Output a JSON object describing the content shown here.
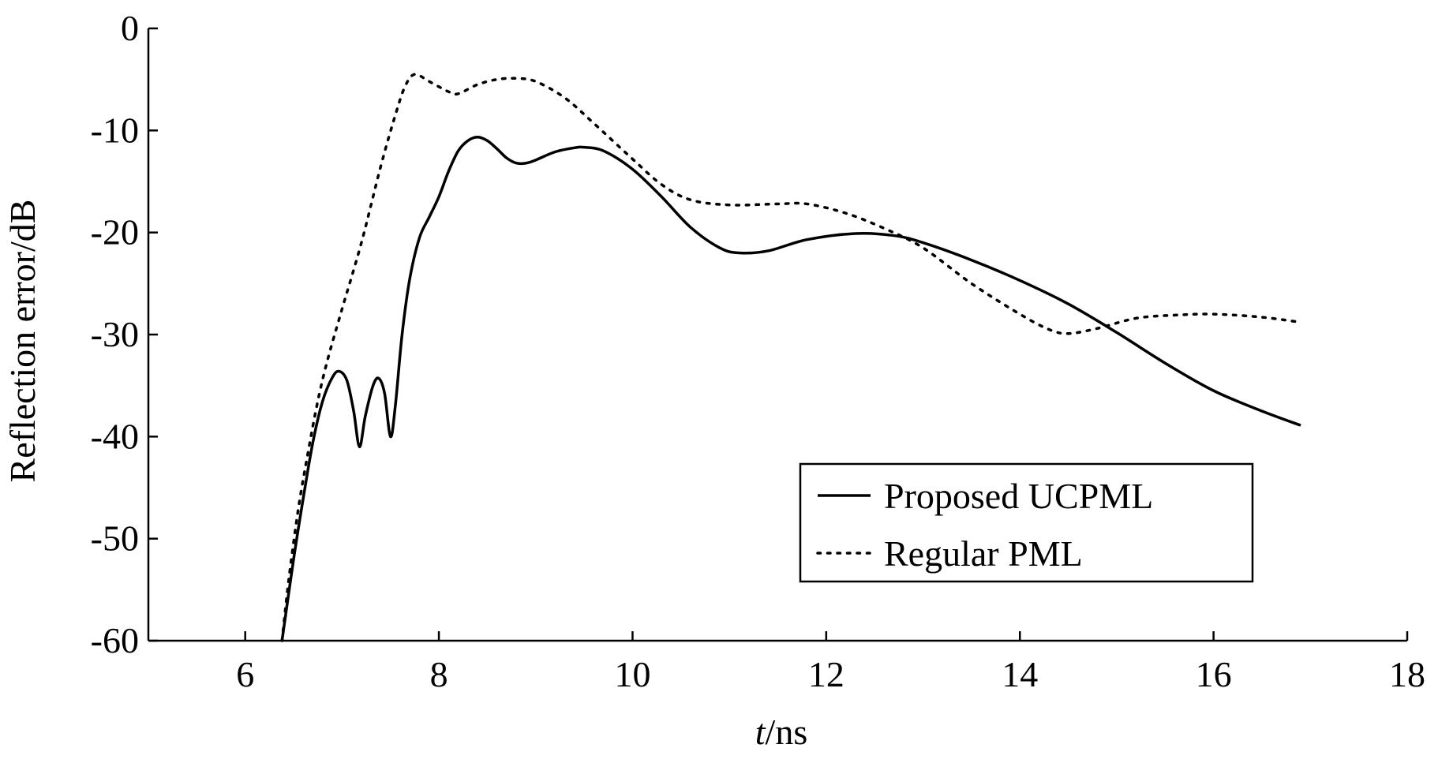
{
  "chart_data": {
    "type": "line",
    "title": "",
    "xlabel_italic": "t",
    "xlabel_rest": "/ns",
    "ylabel": "Reflection error/dB",
    "xlim": [
      5,
      18
    ],
    "ylim": [
      -60,
      0
    ],
    "x_ticks": [
      6,
      8,
      10,
      12,
      14,
      16,
      18
    ],
    "y_ticks": [
      0,
      -10,
      -20,
      -30,
      -40,
      -50,
      -60
    ],
    "grid": false,
    "legend_position": "bottom-right",
    "series": [
      {
        "name": "Proposed UCPML",
        "style": "solid",
        "color": "#000000",
        "points": [
          [
            6.38,
            -60
          ],
          [
            6.5,
            -52
          ],
          [
            6.6,
            -46
          ],
          [
            6.7,
            -40.5
          ],
          [
            6.8,
            -36.5
          ],
          [
            6.9,
            -34.2
          ],
          [
            6.97,
            -33.6
          ],
          [
            7.05,
            -34.5
          ],
          [
            7.12,
            -37.5
          ],
          [
            7.18,
            -41
          ],
          [
            7.24,
            -38
          ],
          [
            7.32,
            -35
          ],
          [
            7.38,
            -34.3
          ],
          [
            7.44,
            -35.8
          ],
          [
            7.5,
            -40
          ],
          [
            7.55,
            -37
          ],
          [
            7.62,
            -30
          ],
          [
            7.7,
            -24.5
          ],
          [
            7.8,
            -20.5
          ],
          [
            7.9,
            -18.5
          ],
          [
            8.0,
            -16.5
          ],
          [
            8.1,
            -14
          ],
          [
            8.2,
            -12
          ],
          [
            8.3,
            -11
          ],
          [
            8.4,
            -10.65
          ],
          [
            8.5,
            -11
          ],
          [
            8.6,
            -11.8
          ],
          [
            8.7,
            -12.7
          ],
          [
            8.8,
            -13.2
          ],
          [
            8.9,
            -13.2
          ],
          [
            9.0,
            -12.9
          ],
          [
            9.2,
            -12.1
          ],
          [
            9.4,
            -11.7
          ],
          [
            9.5,
            -11.65
          ],
          [
            9.7,
            -12
          ],
          [
            10.0,
            -13.8
          ],
          [
            10.3,
            -16.5
          ],
          [
            10.6,
            -19.5
          ],
          [
            10.9,
            -21.5
          ],
          [
            11.1,
            -22
          ],
          [
            11.4,
            -21.8
          ],
          [
            11.8,
            -20.7
          ],
          [
            12.3,
            -20.1
          ],
          [
            12.7,
            -20.3
          ],
          [
            13.0,
            -21
          ],
          [
            13.5,
            -22.7
          ],
          [
            14.0,
            -24.7
          ],
          [
            14.5,
            -27
          ],
          [
            15.0,
            -29.8
          ],
          [
            15.5,
            -32.8
          ],
          [
            16.0,
            -35.5
          ],
          [
            16.5,
            -37.5
          ],
          [
            16.9,
            -38.9
          ]
        ]
      },
      {
        "name": "Regular PML",
        "style": "dotted",
        "color": "#000000",
        "points": [
          [
            6.38,
            -60
          ],
          [
            6.45,
            -54
          ],
          [
            6.55,
            -47
          ],
          [
            6.65,
            -41.5
          ],
          [
            6.75,
            -36.5
          ],
          [
            6.85,
            -32.5
          ],
          [
            7.0,
            -27.5
          ],
          [
            7.2,
            -21
          ],
          [
            7.4,
            -13.5
          ],
          [
            7.55,
            -8.5
          ],
          [
            7.65,
            -5.7
          ],
          [
            7.75,
            -4.5
          ],
          [
            7.9,
            -5.2
          ],
          [
            8.1,
            -6.2
          ],
          [
            8.2,
            -6.4
          ],
          [
            8.4,
            -5.5
          ],
          [
            8.6,
            -5
          ],
          [
            8.8,
            -4.9
          ],
          [
            9.0,
            -5.2
          ],
          [
            9.3,
            -6.8
          ],
          [
            9.6,
            -9.3
          ],
          [
            10.0,
            -12.8
          ],
          [
            10.3,
            -15.3
          ],
          [
            10.6,
            -16.8
          ],
          [
            11.0,
            -17.3
          ],
          [
            11.5,
            -17.2
          ],
          [
            11.8,
            -17.2
          ],
          [
            12.2,
            -18.1
          ],
          [
            12.6,
            -19.6
          ],
          [
            13.0,
            -21.5
          ],
          [
            13.5,
            -25
          ],
          [
            14.0,
            -28
          ],
          [
            14.3,
            -29.5
          ],
          [
            14.5,
            -29.9
          ],
          [
            14.8,
            -29.4
          ],
          [
            15.2,
            -28.4
          ],
          [
            15.6,
            -28.1
          ],
          [
            16.0,
            -28
          ],
          [
            16.5,
            -28.3
          ],
          [
            16.9,
            -28.8
          ]
        ]
      }
    ]
  }
}
